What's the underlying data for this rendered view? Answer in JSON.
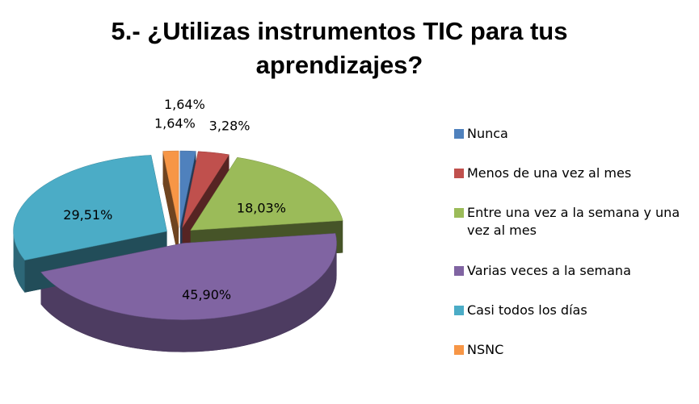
{
  "chart_data": {
    "type": "pie3d",
    "title": "5.- ¿Utilizas instrumentos TIC para tus aprendizajes?",
    "categories": [
      "Nunca",
      "Menos de una vez al mes",
      "Entre una vez a la semana y una vez al mes",
      "Varias veces a la semana",
      "Casi todos los días",
      "NSNC"
    ],
    "values": [
      1.64,
      3.28,
      18.03,
      45.9,
      29.51,
      1.64
    ],
    "value_labels": [
      "1,64%",
      "3,28%",
      "18,03%",
      "45,90%",
      "29,51%",
      "1,64%"
    ],
    "colors": [
      "#4f81bd",
      "#c0504d",
      "#9bbb59",
      "#8064a2",
      "#4bacc6",
      "#f79646"
    ],
    "legend": "right"
  }
}
